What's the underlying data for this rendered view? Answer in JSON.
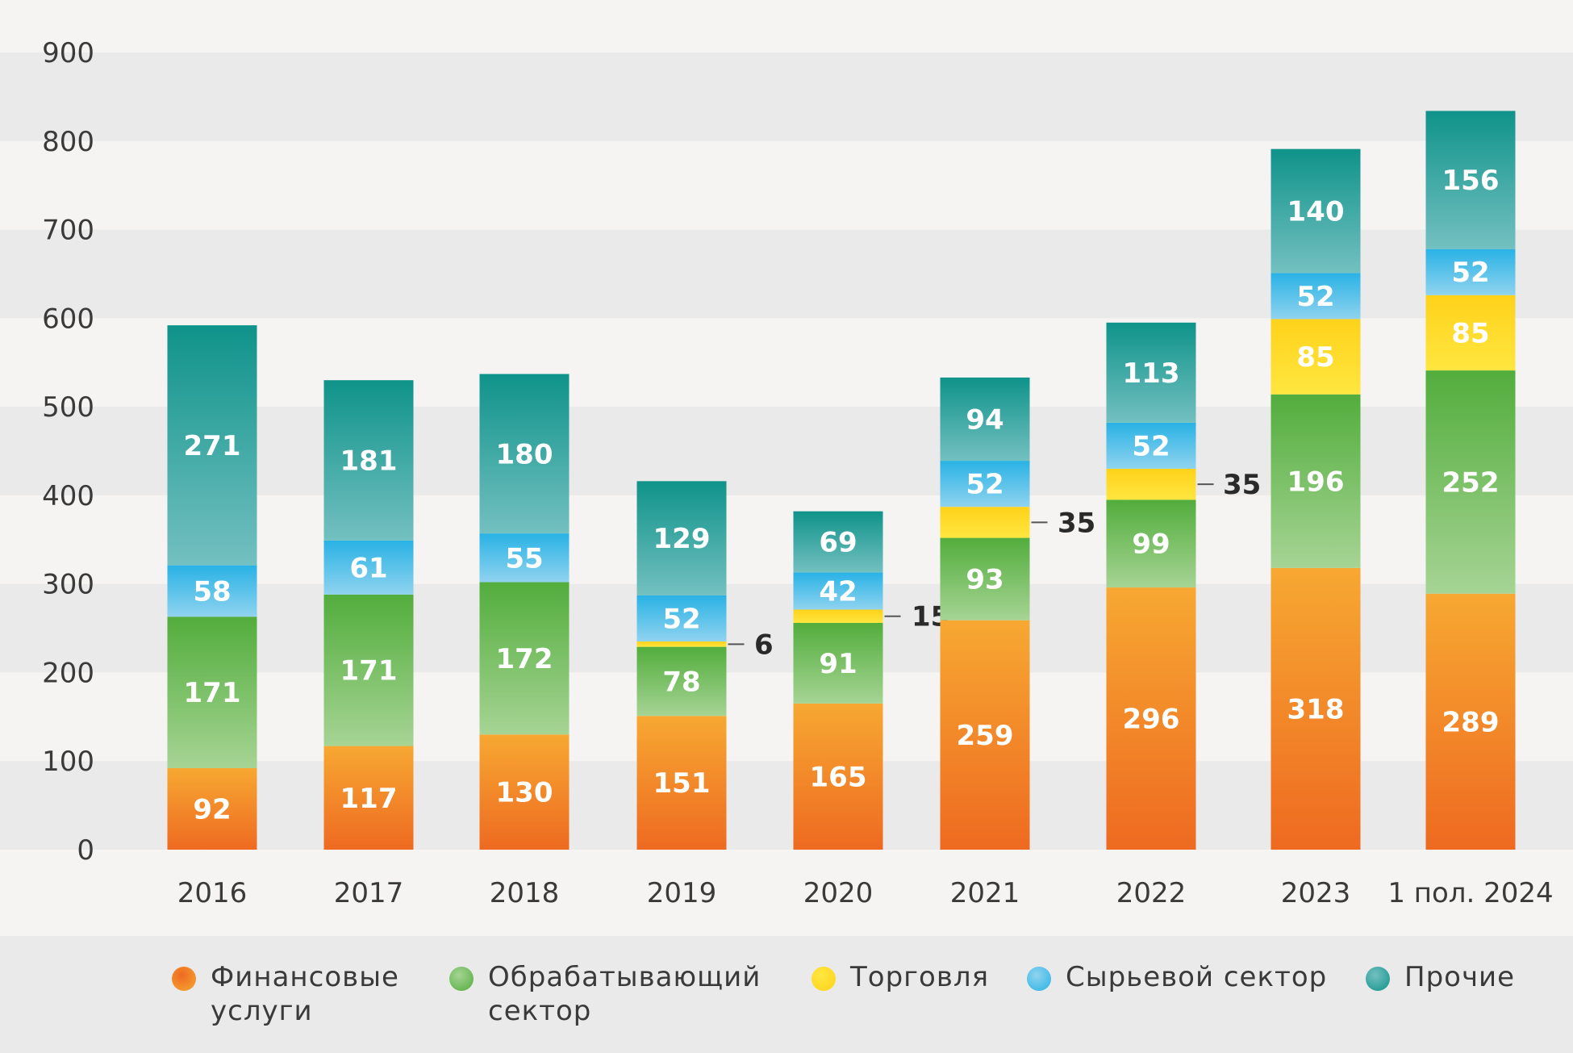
{
  "chart_data": {
    "type": "bar",
    "stacked": true,
    "categories": [
      "2016",
      "2017",
      "2018",
      "2019",
      "2020",
      "2021",
      "2022",
      "2023",
      "1 пол. 2024"
    ],
    "series": [
      {
        "name": "Финансовые\nуслуги",
        "color_top": "#f7a832",
        "color_bottom": "#ee6a21",
        "values": [
          92,
          117,
          130,
          151,
          165,
          259,
          296,
          318,
          289
        ]
      },
      {
        "name": "Обрабатывающий\nсектор",
        "color_top": "#52ad3c",
        "color_bottom": "#a6d494",
        "values": [
          171,
          171,
          172,
          78,
          91,
          93,
          99,
          196,
          252
        ]
      },
      {
        "name": "Торговля",
        "color_top": "#ffd21a",
        "color_bottom": "#ffe640",
        "values": [
          0,
          0,
          0,
          6,
          15,
          35,
          35,
          85,
          85
        ]
      },
      {
        "name": "Сырьевой сектор",
        "color_top": "#29b2e5",
        "color_bottom": "#8fd3ef",
        "values": [
          58,
          61,
          55,
          52,
          42,
          52,
          52,
          52,
          52
        ]
      },
      {
        "name": "Прочие",
        "color_top": "#0f938a",
        "color_bottom": "#73c0c0",
        "values": [
          271,
          181,
          180,
          129,
          69,
          94,
          113,
          140,
          156
        ]
      }
    ],
    "labels": {
      "Финансовые\nуслуги": [
        "92",
        "117",
        "130",
        "151",
        "165",
        "259",
        "296",
        "318",
        "289"
      ],
      "Обрабатывающий\nсектор": [
        "171",
        "171",
        "172",
        "78",
        "91",
        "93",
        "99",
        "196",
        "252"
      ],
      "Торговля": [
        "",
        "",
        "",
        "6",
        "15",
        "35",
        "35",
        "85",
        "85"
      ],
      "Сырьевой сектор": [
        "58",
        "61",
        "55",
        "52",
        "42",
        "52",
        "52",
        "52",
        "52"
      ],
      "Прочие": [
        "271",
        "181",
        "180",
        "129",
        "69",
        "94",
        "113",
        "140",
        "156"
      ]
    },
    "outside_label_indices": [
      3,
      4,
      5,
      6
    ],
    "yticks": [
      0,
      100,
      200,
      300,
      400,
      500,
      600,
      700,
      800,
      900
    ],
    "ylim": [
      0,
      900
    ],
    "title": "",
    "xlabel": "",
    "ylabel": "",
    "legend_position": "bottom",
    "grid": "alternating horizontal bands"
  },
  "colors": {
    "background": "#f5f4f2",
    "band": "#ebeaea",
    "text": "#3a3a3a"
  }
}
